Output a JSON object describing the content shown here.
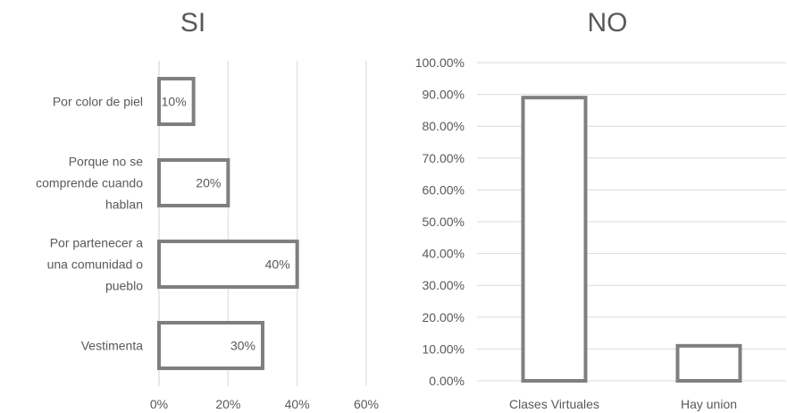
{
  "chart_data": [
    {
      "type": "bar",
      "orientation": "horizontal",
      "title": "SI",
      "categories": [
        [
          "Por color de piel"
        ],
        [
          "Porque no se",
          "comprende cuando",
          "hablan"
        ],
        [
          "Por partenecer a",
          "una comunidad o",
          "pueblo"
        ],
        [
          "Vestimenta"
        ]
      ],
      "values": [
        10,
        20,
        40,
        30
      ],
      "data_labels": [
        "10%",
        "20%",
        "40%",
        "30%"
      ],
      "x_ticks": [
        "0%",
        "20%",
        "40%",
        "60%"
      ],
      "xlim": [
        0,
        60
      ],
      "xlabel": "",
      "ylabel": "",
      "grid": true,
      "legend": "none"
    },
    {
      "type": "bar",
      "orientation": "vertical",
      "title": "NO",
      "categories": [
        "Clases Virtuales",
        "Hay union"
      ],
      "values": [
        89,
        11
      ],
      "y_ticks": [
        "0.00%",
        "10.00%",
        "20.00%",
        "30.00%",
        "40.00%",
        "50.00%",
        "60.00%",
        "70.00%",
        "80.00%",
        "90.00%",
        "100.00%"
      ],
      "ylim": [
        0,
        100
      ],
      "xlabel": "",
      "ylabel": "",
      "grid": true,
      "legend": "none"
    }
  ],
  "colors": {
    "bar_stroke": "#7f7f7f",
    "text": "#595959",
    "grid": "#d9d9d9"
  }
}
